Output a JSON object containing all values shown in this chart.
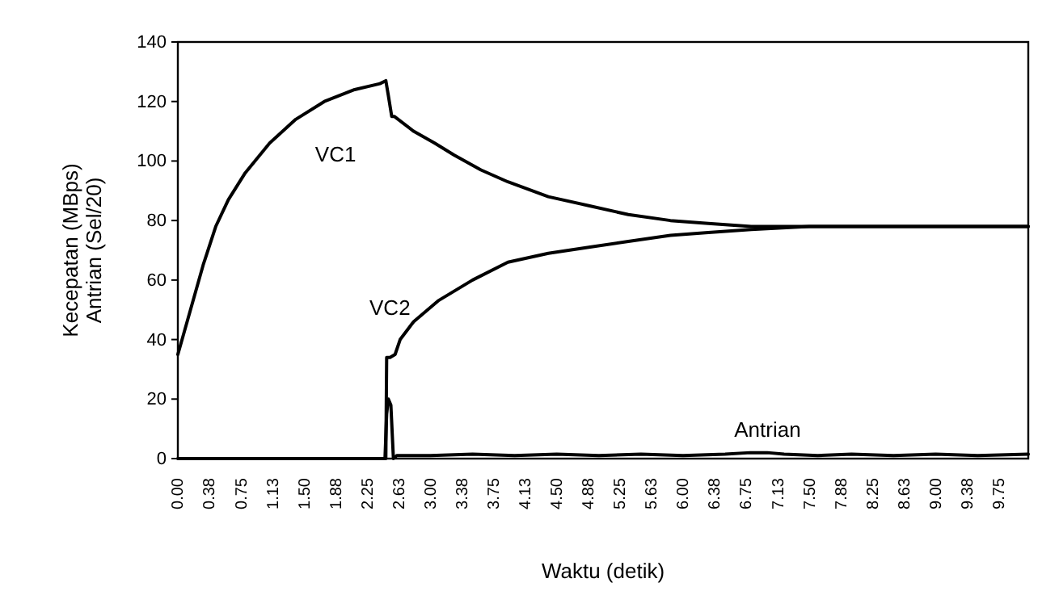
{
  "chart_data": {
    "type": "line",
    "xlabel": "Waktu (detik)",
    "ylabel": "Kecepatan (MBps)\nAntrian (Sel/20)",
    "xlim": [
      0,
      10.1
    ],
    "ylim": [
      0,
      140
    ],
    "yticks": [
      0,
      20,
      40,
      60,
      80,
      100,
      120,
      140
    ],
    "xticks": [
      {
        "value": 0,
        "label": "0.00"
      },
      {
        "value": 0.375,
        "label": "0.38"
      },
      {
        "value": 0.75,
        "label": "0.75"
      },
      {
        "value": 1.125,
        "label": "1.13"
      },
      {
        "value": 1.5,
        "label": "1.50"
      },
      {
        "value": 1.875,
        "label": "1.88"
      },
      {
        "value": 2.25,
        "label": "2.25"
      },
      {
        "value": 2.625,
        "label": "2.63"
      },
      {
        "value": 3,
        "label": "3.00"
      },
      {
        "value": 3.375,
        "label": "3.38"
      },
      {
        "value": 3.75,
        "label": "3.75"
      },
      {
        "value": 4.125,
        "label": "4.13"
      },
      {
        "value": 4.5,
        "label": "4.50"
      },
      {
        "value": 4.875,
        "label": "4.88"
      },
      {
        "value": 5.25,
        "label": "5.25"
      },
      {
        "value": 5.625,
        "label": "5.63"
      },
      {
        "value": 6,
        "label": "6.00"
      },
      {
        "value": 6.375,
        "label": "6.38"
      },
      {
        "value": 6.75,
        "label": "6.75"
      },
      {
        "value": 7.125,
        "label": "7.13"
      },
      {
        "value": 7.5,
        "label": "7.50"
      },
      {
        "value": 7.875,
        "label": "7.88"
      },
      {
        "value": 8.25,
        "label": "8.25"
      },
      {
        "value": 8.625,
        "label": "8.63"
      },
      {
        "value": 9,
        "label": "9.00"
      },
      {
        "value": 9.375,
        "label": "9.38"
      },
      {
        "value": 9.75,
        "label": "9.75"
      }
    ],
    "grid": false,
    "marker": "none",
    "line_style": "solid",
    "series": [
      {
        "name": "VC1",
        "color": "#000000",
        "x": [
          0,
          0.03,
          0.15,
          0.3,
          0.45,
          0.6,
          0.8,
          1.09,
          1.4,
          1.74,
          2.1,
          2.4,
          2.47,
          2.5,
          2.54,
          2.57,
          2.8,
          3.05,
          3.28,
          3.6,
          3.92,
          4.4,
          4.88,
          5.35,
          5.85,
          6.3,
          6.81,
          7.5,
          8.5,
          10.1
        ],
        "values": [
          35,
          38,
          50,
          65,
          78,
          87,
          96,
          106,
          114,
          120,
          124,
          126,
          127,
          122,
          115,
          115,
          110,
          106,
          102,
          97,
          93,
          88,
          85,
          82,
          80,
          79,
          78,
          78,
          78,
          78
        ]
      },
      {
        "name": "VC2",
        "color": "#000000",
        "x": [
          2.47,
          2.48,
          2.52,
          2.58,
          2.64,
          2.8,
          3.09,
          3.5,
          3.92,
          4.4,
          4.88,
          5.35,
          5.85,
          6.3,
          6.81,
          7.5,
          8.5,
          10.1
        ],
        "values": [
          0,
          34,
          34,
          35,
          40,
          46,
          53,
          60,
          66,
          69,
          71,
          73,
          75,
          76,
          77,
          78,
          78,
          78
        ]
      },
      {
        "name": "Antrian",
        "color": "#000000",
        "x": [
          0,
          2.46,
          2.48,
          2.5,
          2.53,
          2.56,
          2.6,
          3.0,
          3.5,
          4.0,
          4.5,
          5.0,
          5.5,
          6.0,
          6.5,
          6.8,
          7.0,
          7.2,
          7.6,
          8.0,
          8.5,
          9.0,
          9.5,
          10.1
        ],
        "values": [
          0,
          0,
          15,
          20,
          18,
          0,
          1,
          1,
          1.5,
          1,
          1.5,
          1,
          1.5,
          1,
          1.5,
          2,
          2,
          1.5,
          1,
          1.5,
          1,
          1.5,
          1,
          1.5
        ]
      }
    ]
  }
}
